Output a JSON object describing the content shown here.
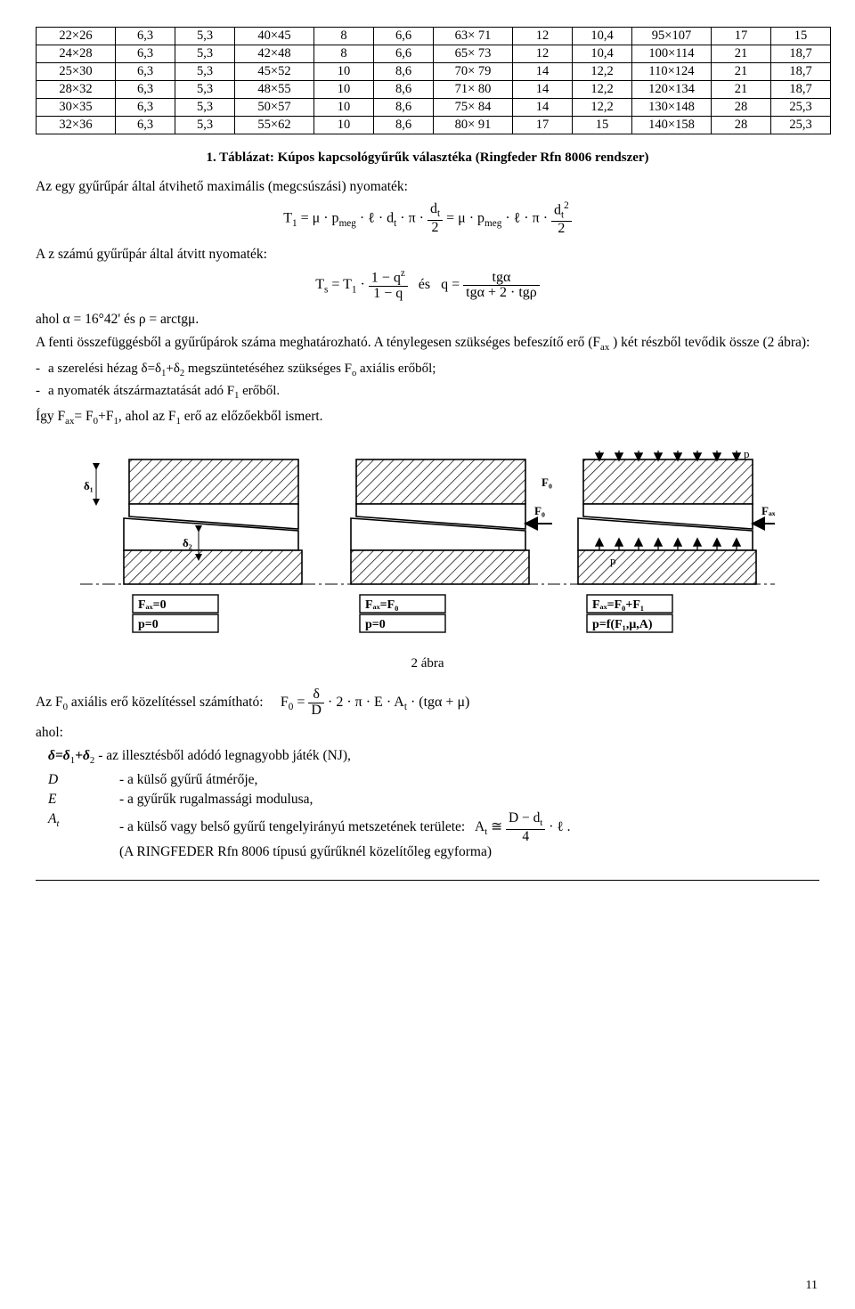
{
  "tables": {
    "cols": [
      "dim",
      "v1",
      "v2"
    ],
    "blocks": [
      [
        [
          "22×26",
          "6,3",
          "5,3"
        ],
        [
          "24×28",
          "6,3",
          "5,3"
        ],
        [
          "25×30",
          "6,3",
          "5,3"
        ],
        [
          "28×32",
          "6,3",
          "5,3"
        ],
        [
          "30×35",
          "6,3",
          "5,3"
        ],
        [
          "32×36",
          "6,3",
          "5,3"
        ]
      ],
      [
        [
          "40×45",
          "8",
          "6,6"
        ],
        [
          "42×48",
          "8",
          "6,6"
        ],
        [
          "45×52",
          "10",
          "8,6"
        ],
        [
          "48×55",
          "10",
          "8,6"
        ],
        [
          "50×57",
          "10",
          "8,6"
        ],
        [
          "55×62",
          "10",
          "8,6"
        ]
      ],
      [
        [
          "63× 71",
          "12",
          "10,4"
        ],
        [
          "65× 73",
          "12",
          "10,4"
        ],
        [
          "70× 79",
          "14",
          "12,2"
        ],
        [
          "71× 80",
          "14",
          "12,2"
        ],
        [
          "75× 84",
          "14",
          "12,2"
        ],
        [
          "80× 91",
          "17",
          "15"
        ]
      ],
      [
        [
          "95×107",
          "17",
          "15"
        ],
        [
          "100×114",
          "21",
          "18,7"
        ],
        [
          "110×124",
          "21",
          "18,7"
        ],
        [
          "120×134",
          "21",
          "18,7"
        ],
        [
          "130×148",
          "28",
          "25,3"
        ],
        [
          "140×158",
          "28",
          "25,3"
        ]
      ]
    ]
  },
  "caption": "1. Táblázat: Kúpos kapcsológyűrűk választéka (Ringfeder Rfn 8006 rendszer)",
  "para_t1_lead": "Az egy gyűrűpár által átvihető maximális (megcsúszási) nyomaték:",
  "para_ts_lead": "A z számú gyűrűpár által átvitt nyomaték:",
  "para_alpha": "ahol α = 16°42' és ρ = arctgμ.",
  "para_after1": "A fenti összefüggésből a gyűrűpárok száma meghatározható. A ténylegesen szükséges befeszítő erő (F",
  "para_after1b": " ) két részből tevődik össze (2 ábra):",
  "li1a": "a szerelési hézag δ=δ",
  "li1b": "+δ",
  "li1c": " megszüntetéséhez szükséges F",
  "li1d": " axiális erőből;",
  "li2a": "a nyomaték átszármaztatását adó F",
  "li2b": " erőből.",
  "para_igy_a": "Így F",
  "para_igy_b": "= F",
  "para_igy_c": "+F",
  "para_igy_d": ", ahol az F",
  "para_igy_e": " erő az előzőekből ismert.",
  "fig_cap": "2 ábra",
  "para_f0_lead": "Az F",
  "para_f0_lead2": " axiális erő közelítéssel számítható:",
  "ahol": "ahol:",
  "def_delta_a": "δ=δ",
  "def_delta_b": "+δ",
  "def_delta_c": " - az illesztésből adódó legnagyobb játék (NJ),",
  "def_D": "- a külső gyűrű átmérője,",
  "def_E": "- a gyűrűk rugalmassági modulusa,",
  "def_At_a": "- a külső vagy belső gyűrű tengelyirányú metszetének területe:",
  "def_At_tail": "(A RINGFEDER Rfn 8006 típusú gyűrűknél közelítőleg egyforma)",
  "page_number": "11",
  "diagram": {
    "panels": [
      {
        "Fax": "Fₐₓ=0",
        "p": "p=0",
        "Fline": "",
        "showP": false
      },
      {
        "Fax": "Fₐₓ=F₀",
        "p": "p=0",
        "Fline": "F₀",
        "showP": false
      },
      {
        "Fax": "Fₐₓ=F₀+F₁",
        "p": "p=f(F₁,μ,A)",
        "Fline": "Fₐₓ",
        "showP": true
      }
    ],
    "labels": {
      "d1": "δ₁",
      "d2": "δ₂",
      "p": "p",
      "Fax": "Fₐₓ",
      "F0": "F₀"
    }
  }
}
